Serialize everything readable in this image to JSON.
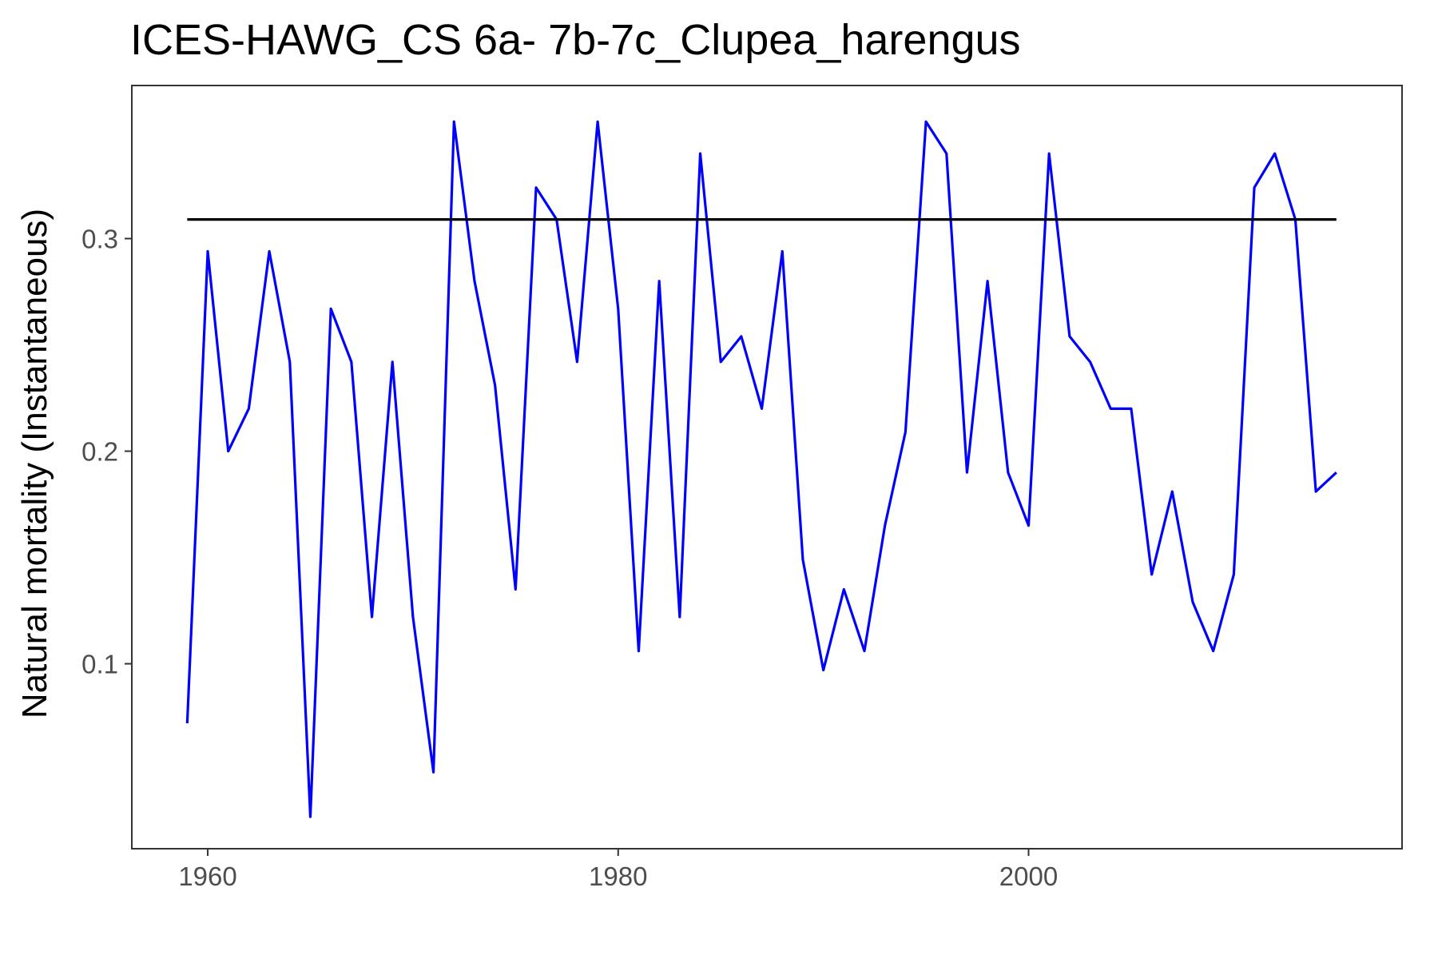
{
  "chart_data": {
    "type": "line",
    "title": "ICES-HAWG_CS 6a- 7b-7c_Clupea_harengus",
    "xlabel": "",
    "ylabel": "Natural mortality (Instantaneous)",
    "xlim": [
      1956.3,
      2018.2
    ],
    "ylim": [
      0.013,
      0.372
    ],
    "x_ticks": [
      1960,
      1980,
      2000
    ],
    "x_tick_labels": [
      "1960",
      "1980",
      "2000"
    ],
    "y_ticks": [
      0.1,
      0.2,
      0.3
    ],
    "y_tick_labels": [
      "0.1",
      "0.2",
      "0.3"
    ],
    "grid": false,
    "legend": "none",
    "series": [
      {
        "color": "#0000ff",
        "x": [
          1959,
          1960,
          1961,
          1962,
          1963,
          1964,
          1965,
          1966,
          1967,
          1968,
          1969,
          1970,
          1971,
          1972,
          1973,
          1974,
          1975,
          1976,
          1977,
          1978,
          1979,
          1980,
          1981,
          1982,
          1983,
          1984,
          1985,
          1986,
          1987,
          1988,
          1989,
          1990,
          1991,
          1992,
          1993,
          1994,
          1995,
          1996,
          1997,
          1998,
          1999,
          2000,
          2001,
          2002,
          2003,
          2004,
          2005,
          2006,
          2007,
          2008,
          2009,
          2010,
          2011,
          2012,
          2013,
          2014,
          2015
        ],
        "values": [
          0.072,
          0.294,
          0.2,
          0.22,
          0.294,
          0.242,
          0.028,
          0.267,
          0.242,
          0.122,
          0.242,
          0.122,
          0.049,
          0.355,
          0.28,
          0.231,
          0.135,
          0.324,
          0.309,
          0.242,
          0.355,
          0.267,
          0.106,
          0.28,
          0.122,
          0.34,
          0.242,
          0.254,
          0.22,
          0.294,
          0.149,
          0.097,
          0.135,
          0.106,
          0.165,
          0.209,
          0.355,
          0.34,
          0.19,
          0.28,
          0.19,
          0.165,
          0.34,
          0.254,
          0.242,
          0.22,
          0.22,
          0.142,
          0.181,
          0.129,
          0.106,
          0.142,
          0.324,
          0.34,
          0.309,
          0.181,
          0.19
        ]
      },
      {
        "color": "#000000",
        "x": [
          1959,
          2015
        ],
        "values": [
          0.309,
          0.309
        ]
      }
    ]
  }
}
